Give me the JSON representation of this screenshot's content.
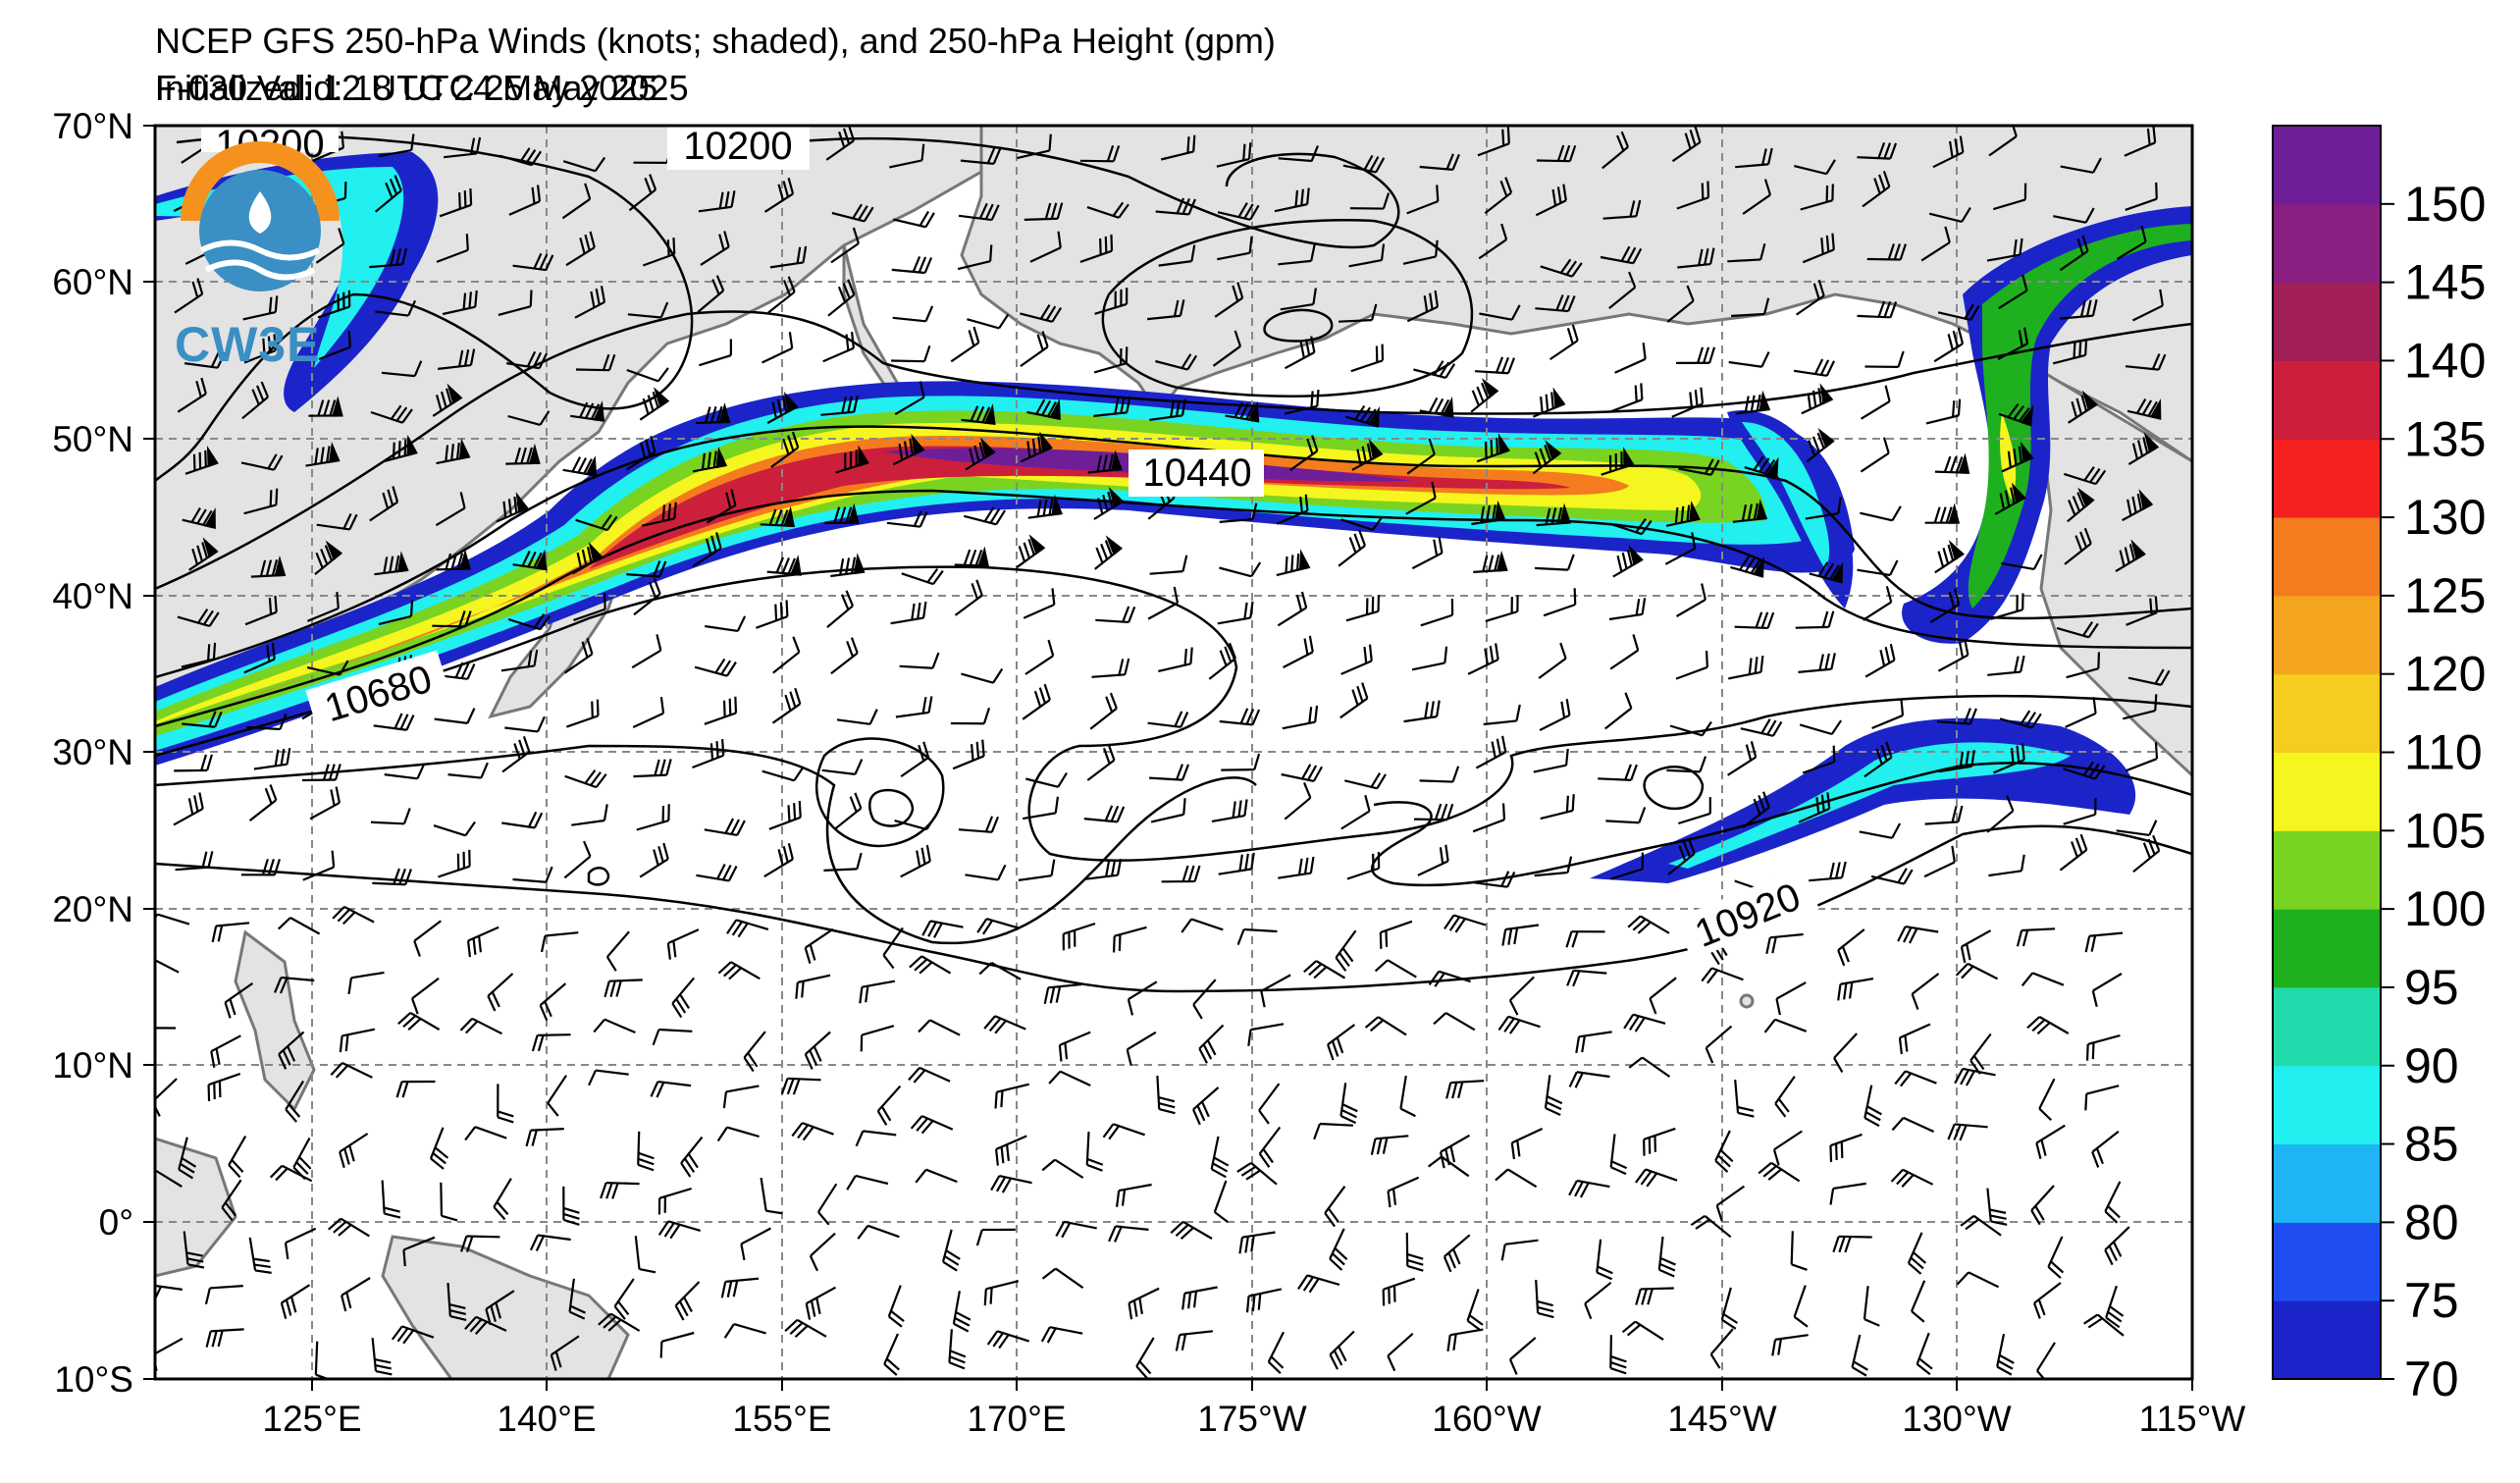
{
  "title": {
    "line1": "NCEP GFS 250-hPa Winds (knots; shaded), and 250-hPa Height (gpm)",
    "initialized": "Initialized: 12 UTC 24 May 2025",
    "valid": "F-030  Valid: 18 UTC 25 May 2025"
  },
  "map": {
    "lat_labels": [
      "70°N",
      "60°N",
      "50°N",
      "40°N",
      "30°N",
      "20°N",
      "10°N",
      "0°",
      "10°S"
    ],
    "lon_labels": [
      "125°E",
      "140°E",
      "155°E",
      "170°E",
      "175°W",
      "160°W",
      "145°W",
      "130°W",
      "115°W"
    ],
    "lat_range": [
      -10,
      70
    ],
    "lon_range_east": [
      115,
      245
    ],
    "land_color": "#e3e3e3",
    "ocean_color": "#ffffff",
    "gridlines": true,
    "contour_labels": [
      "10200",
      "10200",
      "10440",
      "10680",
      "10920"
    ]
  },
  "colorbar": {
    "levels": [
      70,
      75,
      80,
      85,
      90,
      95,
      100,
      105,
      110,
      120,
      125,
      130,
      135,
      140,
      145,
      150,
      155
    ],
    "labels": [
      "70",
      "75",
      "80",
      "85",
      "90",
      "95",
      "100",
      "105",
      "110",
      "120",
      "125",
      "130",
      "135",
      "140",
      "145",
      "150"
    ],
    "colors": [
      "#1b24c9",
      "#1f4ef0",
      "#1fb4f5",
      "#22efef",
      "#20dcac",
      "#1fb01f",
      "#79d321",
      "#f5f51f",
      "#f5cc1f",
      "#f5a41f",
      "#f57b1f",
      "#f52020",
      "#cc1f3c",
      "#a31f58",
      "#8a1f82",
      "#6e1f98"
    ]
  },
  "logo": {
    "text": "CW3E",
    "arc_color": "#f5921e",
    "wave_color": "#3a8fc4"
  }
}
